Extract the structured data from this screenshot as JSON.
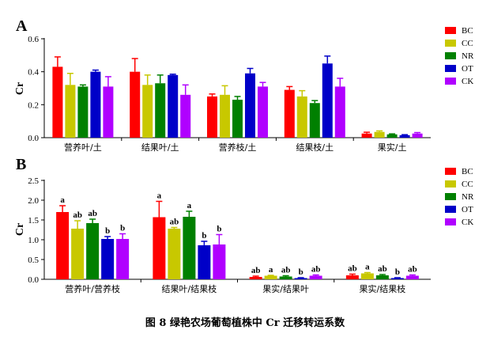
{
  "caption": "图 8  绿艳农场葡萄植株中 Cr 迁移转运系数",
  "colors": {
    "BC": "#ff0000",
    "CC": "#c8c800",
    "NR": "#008000",
    "OT": "#0000c8",
    "CK": "#b000ff"
  },
  "chart_data": [
    {
      "panel": "A",
      "type": "bar",
      "ylabel": "Cr",
      "ylim": [
        0,
        0.6
      ],
      "yticks": [
        "0.0",
        "0.2",
        "0.4",
        "0.6"
      ],
      "legend_position": "top-right",
      "categories": [
        "营养叶/土",
        "结果叶/土",
        "营养枝/土",
        "结果枝/土",
        "果实/土"
      ],
      "series": [
        {
          "name": "BC",
          "values": [
            0.43,
            0.4,
            0.25,
            0.29,
            0.025
          ],
          "errors": [
            0.06,
            0.08,
            0.015,
            0.02,
            0.008
          ]
        },
        {
          "name": "CC",
          "values": [
            0.32,
            0.32,
            0.26,
            0.25,
            0.035
          ],
          "errors": [
            0.07,
            0.06,
            0.055,
            0.035,
            0.006
          ]
        },
        {
          "name": "NR",
          "values": [
            0.31,
            0.33,
            0.23,
            0.21,
            0.02
          ],
          "errors": [
            0.01,
            0.05,
            0.02,
            0.015,
            0.003
          ]
        },
        {
          "name": "OT",
          "values": [
            0.4,
            0.38,
            0.39,
            0.45,
            0.015
          ],
          "errors": [
            0.01,
            0.005,
            0.03,
            0.045,
            0.003
          ]
        },
        {
          "name": "CK",
          "values": [
            0.31,
            0.26,
            0.31,
            0.31,
            0.025
          ],
          "errors": [
            0.06,
            0.06,
            0.025,
            0.05,
            0.006
          ]
        }
      ]
    },
    {
      "panel": "B",
      "type": "bar",
      "ylabel": "Cr",
      "ylim": [
        0,
        2.5
      ],
      "yticks": [
        "0.0",
        "0.5",
        "1.0",
        "1.5",
        "2.0",
        "2.5"
      ],
      "legend_position": "top-right",
      "categories": [
        "营养叶/营养枝",
        "结果叶/结果枝",
        "果实/结果叶",
        "果实/结果枝"
      ],
      "series": [
        {
          "name": "BC",
          "values": [
            1.7,
            1.57,
            0.06,
            0.1
          ],
          "errors": [
            0.16,
            0.4,
            0.02,
            0.03
          ],
          "labels": [
            "a",
            "a",
            "ab",
            "ab"
          ]
        },
        {
          "name": "CC",
          "values": [
            1.28,
            1.28,
            0.09,
            0.15
          ],
          "errors": [
            0.2,
            0.03,
            0.01,
            0.02
          ],
          "labels": [
            "ab",
            "ab",
            "a",
            "a"
          ]
        },
        {
          "name": "NR",
          "values": [
            1.42,
            1.58,
            0.07,
            0.1
          ],
          "errors": [
            0.1,
            0.14,
            0.02,
            0.02
          ],
          "labels": [
            "ab",
            "a",
            "ab",
            "ab"
          ]
        },
        {
          "name": "OT",
          "values": [
            1.02,
            0.86,
            0.03,
            0.03
          ],
          "errors": [
            0.06,
            0.1,
            0.01,
            0.01
          ],
          "labels": [
            "b",
            "b",
            "b",
            "b"
          ]
        },
        {
          "name": "CK",
          "values": [
            1.02,
            0.88,
            0.09,
            0.09
          ],
          "errors": [
            0.13,
            0.25,
            0.02,
            0.02
          ],
          "labels": [
            "b",
            "b",
            "ab",
            "ab"
          ]
        }
      ]
    }
  ]
}
